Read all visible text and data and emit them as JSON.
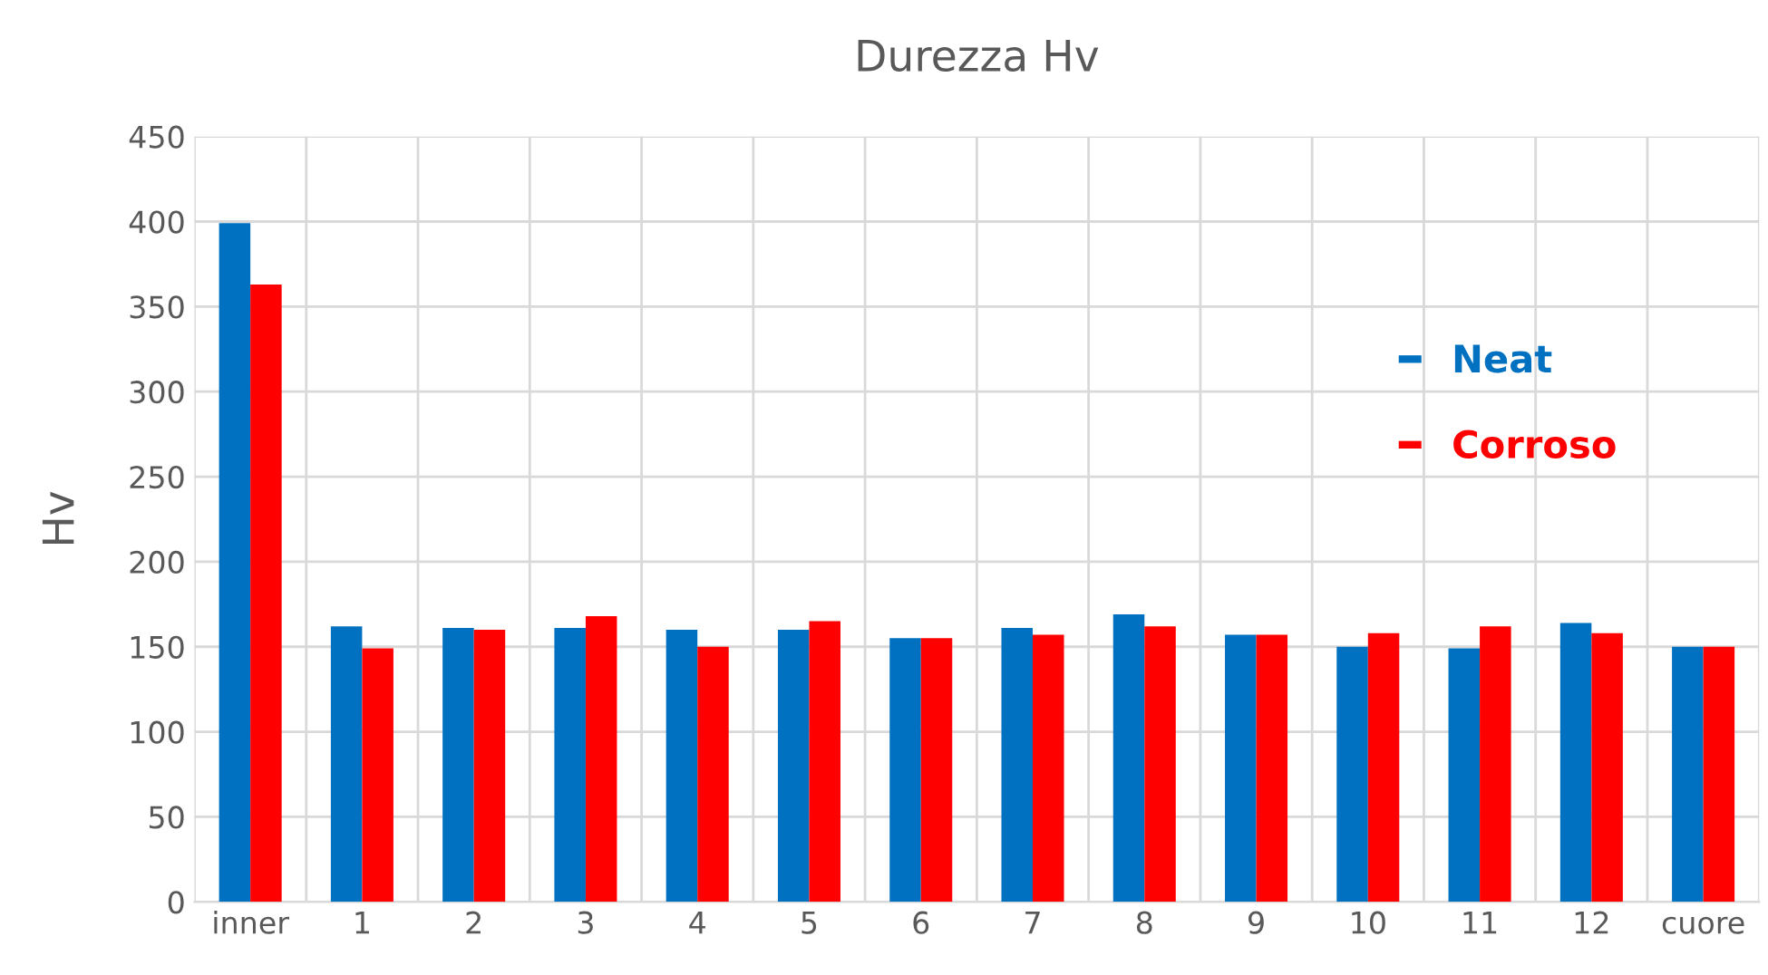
{
  "chart_data": {
    "type": "bar",
    "title": "Durezza Hv",
    "ylabel": "Hv",
    "categories": [
      "inner",
      "1",
      "2",
      "3",
      "4",
      "5",
      "6",
      "7",
      "8",
      "9",
      "10",
      "11",
      "12",
      "cuore"
    ],
    "series": [
      {
        "name": "Neat",
        "color": "#0070c0",
        "values": [
          399,
          162,
          161,
          161,
          160,
          160,
          155,
          161,
          169,
          157,
          150,
          149,
          164,
          150
        ]
      },
      {
        "name": "Corroso",
        "color": "#ff0000",
        "values": [
          363,
          149,
          160,
          168,
          150,
          165,
          155,
          157,
          162,
          157,
          158,
          162,
          158,
          150
        ]
      }
    ],
    "ylim": [
      0,
      450
    ],
    "yticks": [
      0,
      50,
      100,
      150,
      200,
      250,
      300,
      350,
      400,
      450
    ],
    "grid": true,
    "legend": "top right"
  }
}
